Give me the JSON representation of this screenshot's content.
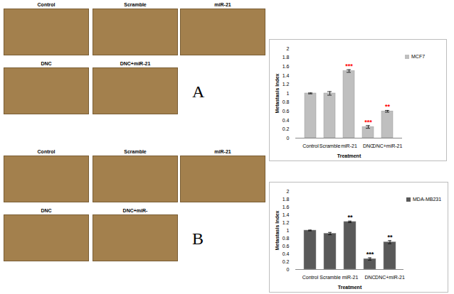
{
  "chart_data": [
    {
      "type": "bar",
      "x_label": "Treatment",
      "y_label": "Metastasis Index",
      "categories": [
        "Control",
        "Scramble",
        "miR-21",
        "DNC",
        "DNC+miR-21"
      ],
      "series": [
        {
          "name": "MCF7",
          "color": "#bfbfbf",
          "values": [
            1,
            1,
            1.5,
            0.25,
            0.6
          ],
          "errors": [
            0.01,
            0.04,
            0.03,
            0.03,
            0.02
          ]
        }
      ],
      "ylim": [
        0,
        2
      ],
      "yticks": [
        0,
        0.2,
        0.4,
        0.6,
        0.8,
        1,
        1.2,
        1.4,
        1.6,
        1.8,
        2
      ],
      "legend": "right",
      "annotations": [
        {
          "category": "miR-21",
          "text": "***",
          "color": "#ff0000"
        },
        {
          "category": "DNC",
          "text": "***",
          "color": "#ff0000"
        },
        {
          "category": "DNC+miR-21",
          "text": "**",
          "color": "#ff0000"
        }
      ]
    },
    {
      "type": "bar",
      "x_label": "Treatment",
      "y_label": "Metastasis Index",
      "categories": [
        "Control",
        "Scramble",
        "miR-21",
        "DNC",
        "DNC+miR-21"
      ],
      "series": [
        {
          "name": "MDA-MB231",
          "color": "#595959",
          "values": [
            1,
            0.92,
            1.22,
            0.27,
            0.7
          ],
          "errors": [
            0.01,
            0.03,
            0.02,
            0.03,
            0.04
          ]
        }
      ],
      "ylim": [
        0,
        2
      ],
      "yticks": [
        0,
        0.2,
        0.4,
        0.6,
        0.8,
        1,
        1.2,
        1.4,
        1.6,
        1.8,
        2
      ],
      "legend": "right",
      "annotations": [
        {
          "category": "miR-21",
          "text": "**",
          "color": "#000000"
        },
        {
          "category": "DNC",
          "text": "***",
          "color": "#000000"
        },
        {
          "category": "DNC+miR-21",
          "text": "**",
          "color": "#000000"
        }
      ]
    }
  ],
  "image_panels": [
    {
      "label": "A",
      "images": [
        "Control",
        "Scramble",
        "miR-21",
        "DNC",
        "DNC+miR-21"
      ]
    },
    {
      "label": "B",
      "images": [
        "Control",
        "Scramble",
        "miR-21",
        "DNC",
        "DNC+miR-"
      ]
    }
  ]
}
